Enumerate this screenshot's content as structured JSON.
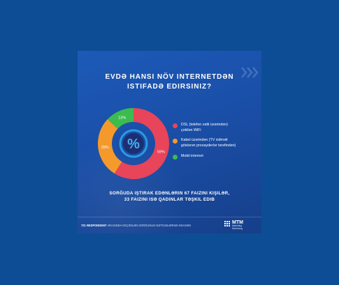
{
  "title": {
    "line1": "Evdə hansı növ internetdən",
    "line2": "istifadə edirsiniz?"
  },
  "chart_data": {
    "type": "pie",
    "categories": [
      "DSL (telefon xətti üzərindən) çəkilən WiFi",
      "Kabel üzərindən (TV xidməti göstərən provayderlər tərəfindən)",
      "Mobil internet"
    ],
    "values": [
      59,
      28,
      13
    ],
    "labels": [
      "59%",
      "28%",
      "13%"
    ],
    "colors": [
      "#e8445a",
      "#f59a2a",
      "#3dbb4f"
    ],
    "center_symbol": "%"
  },
  "legend": [
    {
      "line1": "DSL (telefon xətti üzərindən)",
      "line2": "çəkilən WiFi",
      "color": "#e8445a"
    },
    {
      "line1": "Kabel üzərindən (TV xidməti",
      "line2": "göstərən provayderlər tərəfindən)",
      "color": "#f59a2a"
    },
    {
      "line1": "Mobil internet",
      "line2": "",
      "color": "#3dbb4f"
    }
  ],
  "note": {
    "line1": "Sorğuda iştirak edənlərin 67 faizini kişilər,",
    "line2": "33 faizini isə qadınlar təşkil edib"
  },
  "footer": {
    "bold": "721 respondent",
    "rest": "arasında keçirilən sorğunun nəticələrinə əsasən"
  },
  "logo": {
    "name": "MTM",
    "sub1": "Marketing",
    "sub2": "Monitoring"
  }
}
